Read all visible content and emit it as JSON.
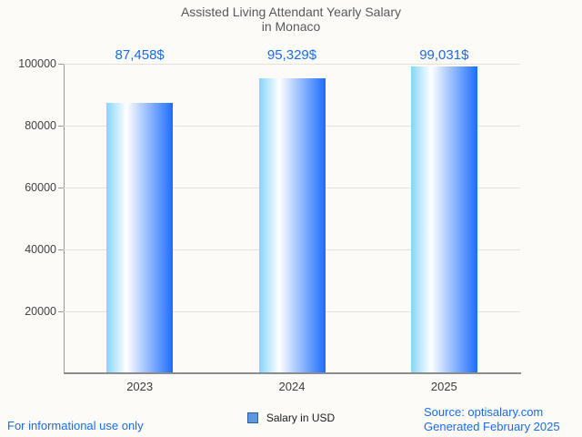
{
  "title": {
    "line1": "Assisted Living Attendant Yearly Salary",
    "line2": "in Monaco"
  },
  "chart_data": {
    "type": "bar",
    "categories": [
      "2023",
      "2024",
      "2025"
    ],
    "values": [
      87458,
      95329,
      99031
    ],
    "value_labels": [
      "87,458$",
      "95,329$",
      "99,031$"
    ],
    "series_name": "Salary in USD",
    "ylabel": "",
    "xlabel": "",
    "ylim": [
      0,
      100000
    ],
    "yticks": [
      20000,
      40000,
      60000,
      80000,
      100000
    ],
    "ytick_labels": [
      "20000",
      "40000",
      "60000",
      "80000",
      "100000"
    ],
    "grid": true,
    "legend_position": "bottom-center"
  },
  "legend": {
    "label": "Salary in USD"
  },
  "footer": {
    "left": "For informational use only",
    "source": "Source: optisalary.com",
    "generated": "Generated February 2025"
  },
  "colors": {
    "value_label": "#1a6ce8",
    "footer_text": "#1a6ce8",
    "title_text": "#59595b",
    "tick_text": "#424242",
    "axis": "#8c8c8c",
    "gridline": "#e4e2df",
    "bar_gradient_left": "#85d5fa",
    "bar_gradient_mid": "#ffffff",
    "bar_gradient_right": "#1c6dfd",
    "legend_fill": "#6096e0",
    "legend_border": "#2b5fa8"
  }
}
